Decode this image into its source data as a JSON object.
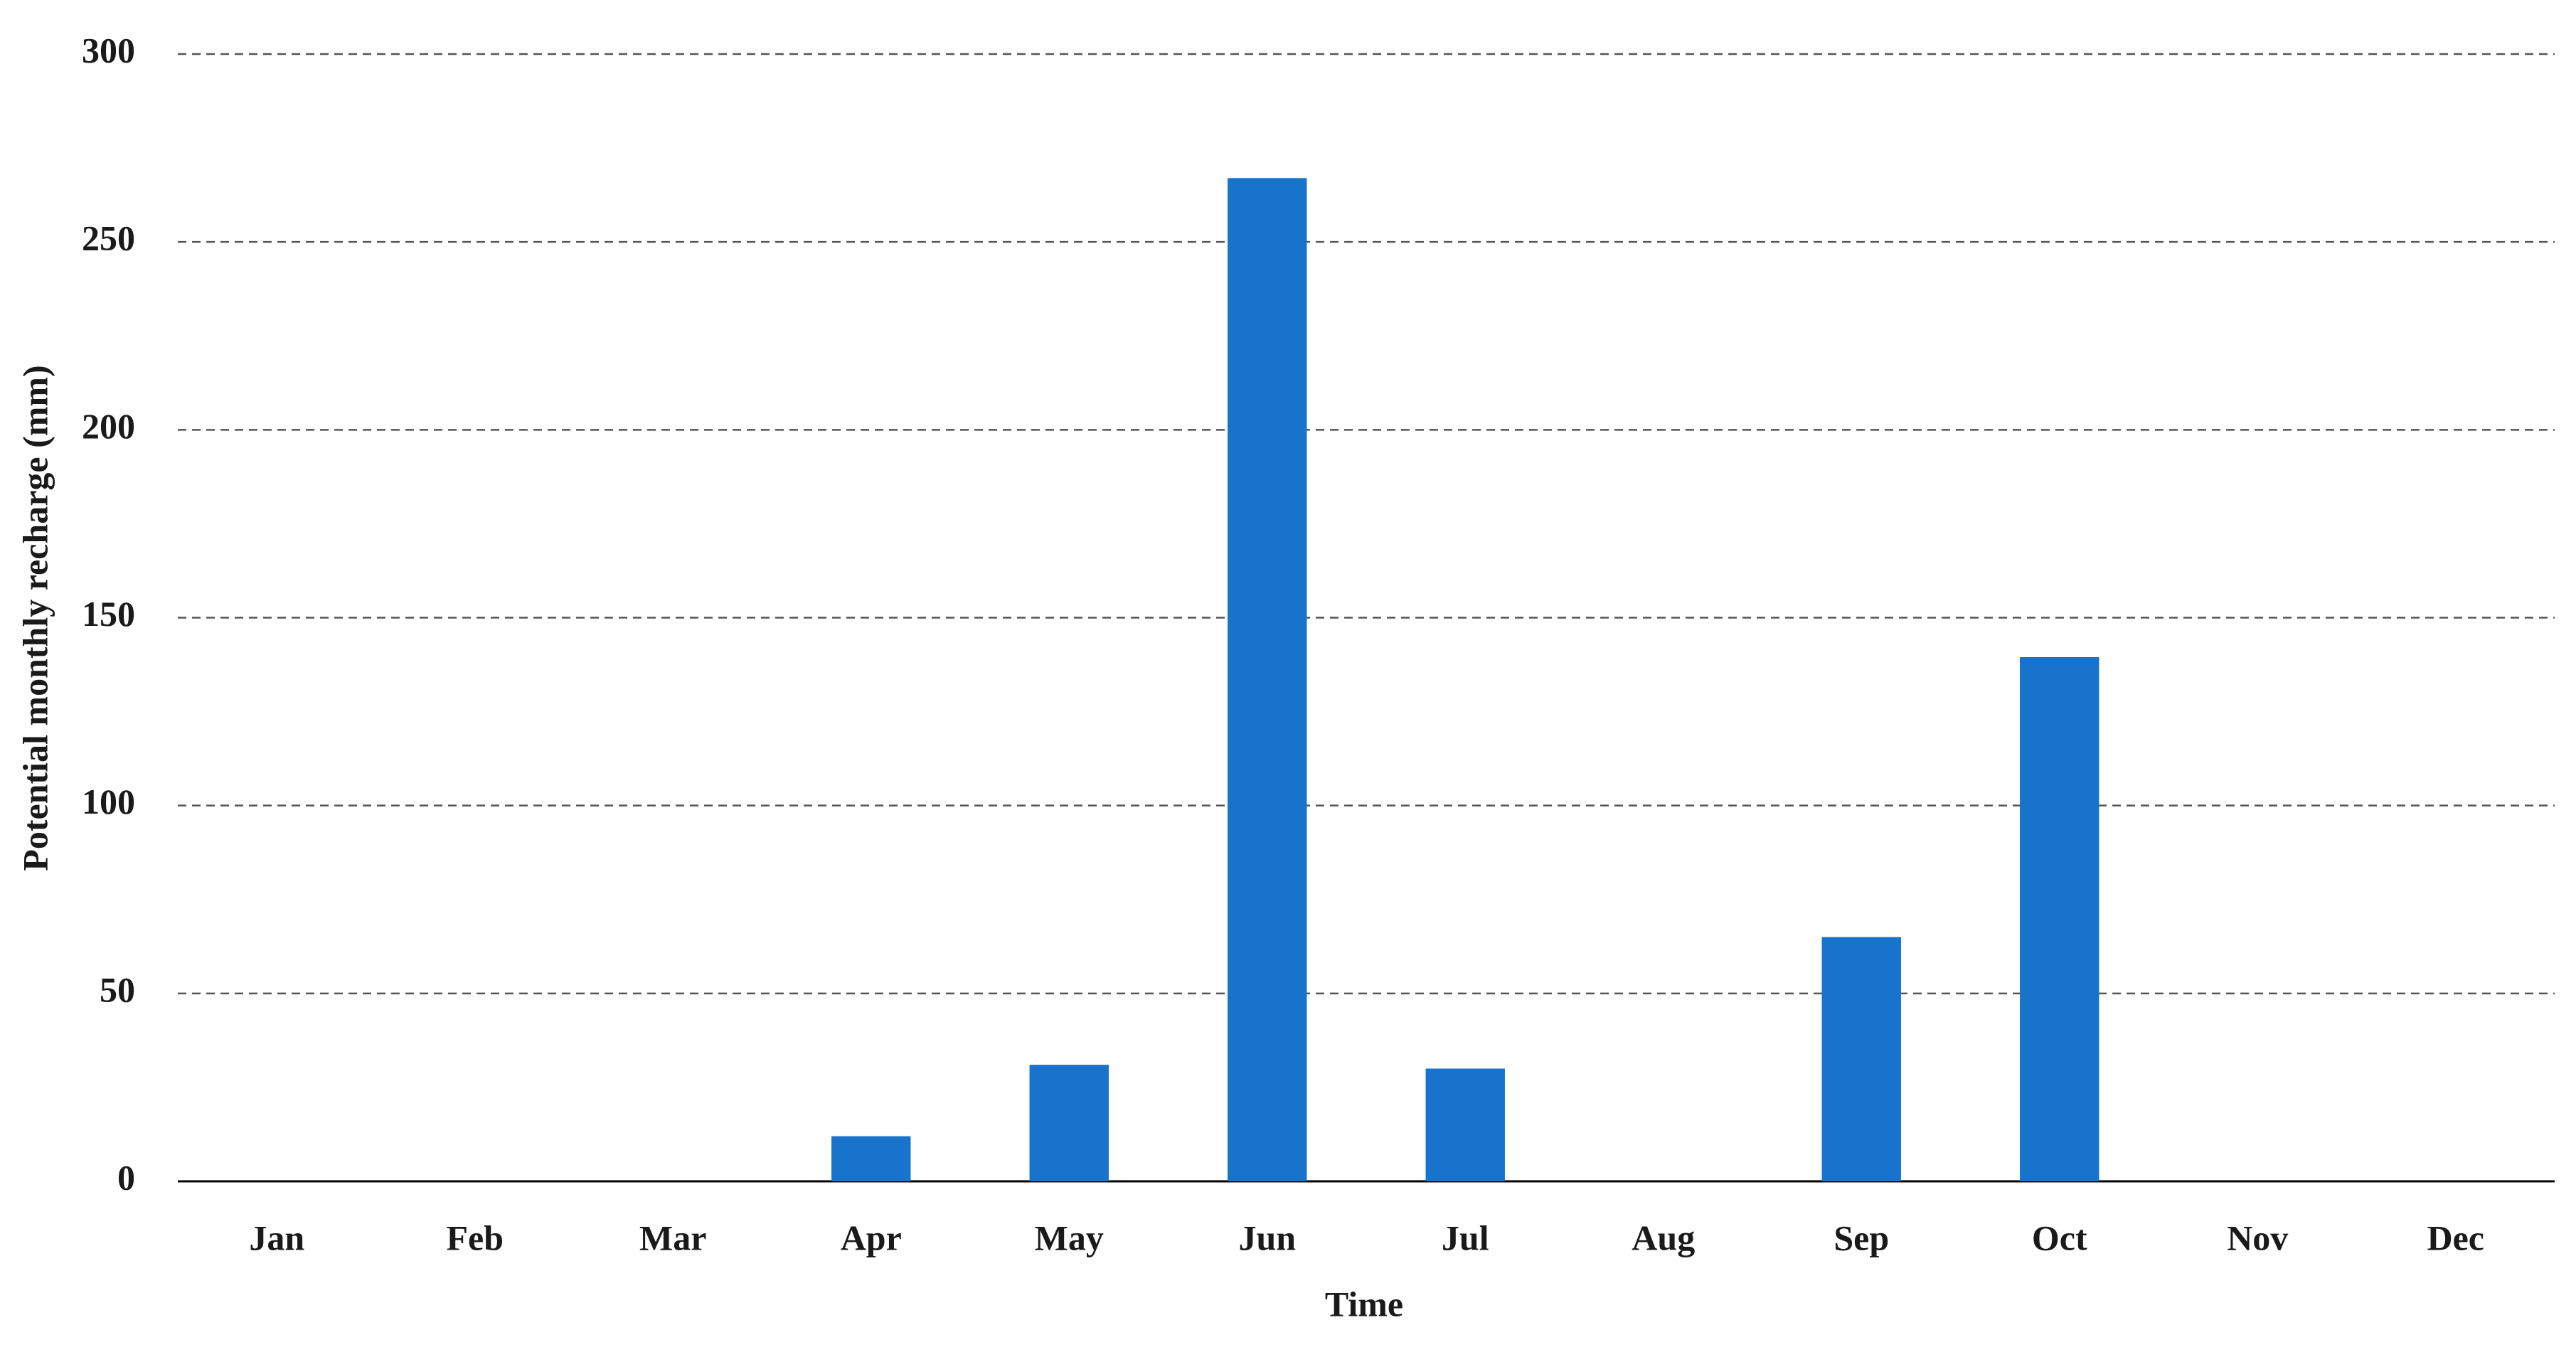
{
  "chart_data": {
    "type": "bar",
    "x_label": "Time",
    "y_label": "Potential monthly recharge (mm)",
    "categories": [
      "Jan",
      "Feb",
      "Mar",
      "Apr",
      "May",
      "Jun",
      "Jul",
      "Aug",
      "Sep",
      "Oct",
      "Nov",
      "Dec"
    ],
    "values": [
      0,
      0,
      0,
      12,
      31,
      267,
      30,
      0,
      65,
      139.5,
      0,
      0
    ],
    "color": "#1873cc",
    "ylim": [
      0,
      300
    ],
    "yticks": [
      0,
      50,
      100,
      150,
      200,
      250,
      300
    ],
    "grid": true
  }
}
